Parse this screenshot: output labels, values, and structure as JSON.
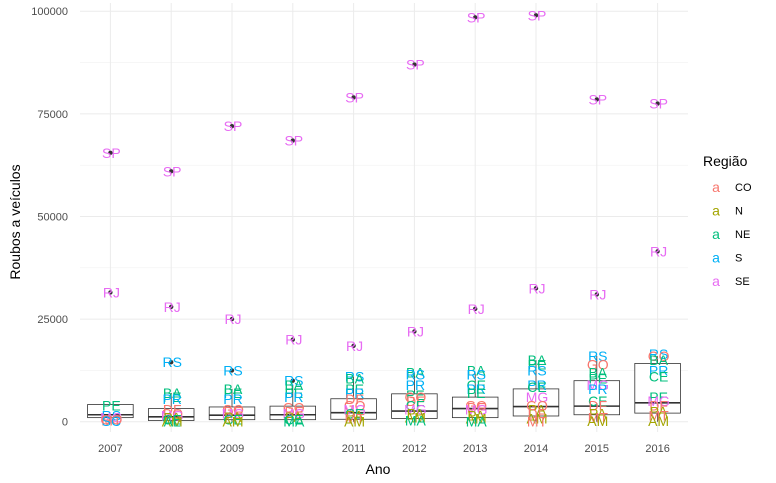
{
  "chart_data": {
    "type": "boxplot",
    "xlabel": "Ano",
    "ylabel": "Roubos a veículos",
    "categories": [
      "2007",
      "2008",
      "2009",
      "2010",
      "2011",
      "2012",
      "2013",
      "2014",
      "2015",
      "2016"
    ],
    "yticks": [
      0,
      25000,
      50000,
      75000,
      100000
    ],
    "ytick_labels": [
      "0",
      "25000",
      "50000",
      "75000",
      "100000"
    ],
    "ylim": [
      -2500,
      102000
    ],
    "legend": {
      "title": "Região",
      "position": "right",
      "glyph": "a",
      "entries": [
        {
          "label": "CO",
          "color": "#F8766D"
        },
        {
          "label": "N",
          "color": "#A3A500"
        },
        {
          "label": "NE",
          "color": "#00BF7D"
        },
        {
          "label": "S",
          "color": "#00B0F6"
        },
        {
          "label": "SE",
          "color": "#E76BF3"
        }
      ]
    },
    "boxes": [
      {
        "x": "2007",
        "q1": 1000,
        "median": 1700,
        "q3": 4200,
        "whisker_low": 0,
        "whisker_high": 4200
      },
      {
        "x": "2008",
        "q1": 300,
        "median": 1200,
        "q3": 3200,
        "whisker_low": 0,
        "whisker_high": 7000
      },
      {
        "x": "2009",
        "q1": 500,
        "median": 1600,
        "q3": 3600,
        "whisker_low": 0,
        "whisker_high": 8000
      },
      {
        "x": "2010",
        "q1": 500,
        "median": 1700,
        "q3": 3800,
        "whisker_low": 0,
        "whisker_high": 9000
      },
      {
        "x": "2011",
        "q1": 600,
        "median": 2200,
        "q3": 5600,
        "whisker_low": 0,
        "whisker_high": 11000
      },
      {
        "x": "2012",
        "q1": 800,
        "median": 2600,
        "q3": 6800,
        "whisker_low": 0,
        "whisker_high": 12000
      },
      {
        "x": "2013",
        "q1": 1000,
        "median": 3200,
        "q3": 6000,
        "whisker_low": 0,
        "whisker_high": 12000
      },
      {
        "x": "2014",
        "q1": 1400,
        "median": 3700,
        "q3": 8000,
        "whisker_low": 0,
        "whisker_high": 15000
      },
      {
        "x": "2015",
        "q1": 1700,
        "median": 3800,
        "q3": 10000,
        "whisker_low": 0,
        "whisker_high": 16000
      },
      {
        "x": "2016",
        "q1": 2100,
        "median": 4600,
        "q3": 14200,
        "whisker_low": 0,
        "whisker_high": 16000
      }
    ],
    "outliers": [
      {
        "x": "2007",
        "value": 65500,
        "label": "SP",
        "region": "SE"
      },
      {
        "x": "2007",
        "value": 31500,
        "label": "RJ",
        "region": "SE"
      },
      {
        "x": "2008",
        "value": 61000,
        "label": "SP",
        "region": "SE"
      },
      {
        "x": "2008",
        "value": 28000,
        "label": "RJ",
        "region": "SE"
      },
      {
        "x": "2008",
        "value": 14500,
        "label": "RS",
        "region": "S"
      },
      {
        "x": "2009",
        "value": 72000,
        "label": "SP",
        "region": "SE"
      },
      {
        "x": "2009",
        "value": 25000,
        "label": "RJ",
        "region": "SE"
      },
      {
        "x": "2009",
        "value": 12500,
        "label": "RS",
        "region": "S"
      },
      {
        "x": "2010",
        "value": 68500,
        "label": "SP",
        "region": "SE"
      },
      {
        "x": "2010",
        "value": 20000,
        "label": "RJ",
        "region": "SE"
      },
      {
        "x": "2010",
        "value": 10000,
        "label": "RS",
        "region": "S"
      },
      {
        "x": "2011",
        "value": 79000,
        "label": "SP",
        "region": "SE"
      },
      {
        "x": "2011",
        "value": 18500,
        "label": "RJ",
        "region": "SE"
      },
      {
        "x": "2012",
        "value": 87000,
        "label": "SP",
        "region": "SE"
      },
      {
        "x": "2012",
        "value": 22000,
        "label": "RJ",
        "region": "SE"
      },
      {
        "x": "2013",
        "value": 98500,
        "label": "SP",
        "region": "SE"
      },
      {
        "x": "2013",
        "value": 27500,
        "label": "RJ",
        "region": "SE"
      },
      {
        "x": "2014",
        "value": 99000,
        "label": "SP",
        "region": "SE"
      },
      {
        "x": "2014",
        "value": 32500,
        "label": "RJ",
        "region": "SE"
      },
      {
        "x": "2015",
        "value": 78500,
        "label": "SP",
        "region": "SE"
      },
      {
        "x": "2015",
        "value": 31000,
        "label": "RJ",
        "region": "SE"
      },
      {
        "x": "2016",
        "value": 77500,
        "label": "SP",
        "region": "SE"
      },
      {
        "x": "2016",
        "value": 41500,
        "label": "RJ",
        "region": "SE"
      }
    ],
    "labels": [
      {
        "x": "2007",
        "value": 31500,
        "label": "RJ",
        "region": "SE"
      },
      {
        "x": "2007",
        "value": 65500,
        "label": "SP",
        "region": "SE"
      },
      {
        "x": "2007",
        "value": 4000,
        "label": "PE",
        "region": "NE"
      },
      {
        "x": "2007",
        "value": 1500,
        "label": "RS",
        "region": "S"
      },
      {
        "x": "2007",
        "value": 1000,
        "label": "MG",
        "region": "SE"
      },
      {
        "x": "2007",
        "value": 500,
        "label": "GO",
        "region": "CO"
      },
      {
        "x": "2007",
        "value": 300,
        "label": "MT",
        "region": "CO"
      },
      {
        "x": "2007",
        "value": 200,
        "label": "SC",
        "region": "S"
      },
      {
        "x": "2008",
        "value": 61000,
        "label": "SP",
        "region": "SE"
      },
      {
        "x": "2008",
        "value": 28000,
        "label": "RJ",
        "region": "SE"
      },
      {
        "x": "2008",
        "value": 14500,
        "label": "RS",
        "region": "S"
      },
      {
        "x": "2008",
        "value": 7000,
        "label": "BA",
        "region": "NE"
      },
      {
        "x": "2008",
        "value": 6000,
        "label": "PE",
        "region": "NE"
      },
      {
        "x": "2008",
        "value": 5500,
        "label": "PR",
        "region": "S"
      },
      {
        "x": "2008",
        "value": 3000,
        "label": "DF",
        "region": "CO"
      },
      {
        "x": "2008",
        "value": 2000,
        "label": "GO",
        "region": "CO"
      },
      {
        "x": "2008",
        "value": 1500,
        "label": "MG",
        "region": "SE"
      },
      {
        "x": "2008",
        "value": 1000,
        "label": "PA",
        "region": "N"
      },
      {
        "x": "2008",
        "value": 500,
        "label": "CE",
        "region": "NE"
      },
      {
        "x": "2008",
        "value": 0,
        "label": "AM",
        "region": "N"
      },
      {
        "x": "2008",
        "value": 0,
        "label": "AL",
        "region": "NE"
      },
      {
        "x": "2009",
        "value": 72000,
        "label": "SP",
        "region": "SE"
      },
      {
        "x": "2009",
        "value": 25000,
        "label": "RJ",
        "region": "SE"
      },
      {
        "x": "2009",
        "value": 12500,
        "label": "RS",
        "region": "S"
      },
      {
        "x": "2009",
        "value": 8000,
        "label": "BA",
        "region": "NE"
      },
      {
        "x": "2009",
        "value": 7000,
        "label": "PE",
        "region": "NE"
      },
      {
        "x": "2009",
        "value": 5500,
        "label": "PR",
        "region": "S"
      },
      {
        "x": "2009",
        "value": 3000,
        "label": "GO",
        "region": "CO"
      },
      {
        "x": "2009",
        "value": 2500,
        "label": "DF",
        "region": "CO"
      },
      {
        "x": "2009",
        "value": 2000,
        "label": "MG",
        "region": "SE"
      },
      {
        "x": "2009",
        "value": 1200,
        "label": "PA",
        "region": "N"
      },
      {
        "x": "2009",
        "value": 600,
        "label": "CE",
        "region": "NE"
      },
      {
        "x": "2009",
        "value": 100,
        "label": "AM",
        "region": "N"
      },
      {
        "x": "2010",
        "value": 68500,
        "label": "SP",
        "region": "SE"
      },
      {
        "x": "2010",
        "value": 20000,
        "label": "RJ",
        "region": "SE"
      },
      {
        "x": "2010",
        "value": 10000,
        "label": "RS",
        "region": "S"
      },
      {
        "x": "2010",
        "value": 9000,
        "label": "BA",
        "region": "NE"
      },
      {
        "x": "2010",
        "value": 7000,
        "label": "PE",
        "region": "NE"
      },
      {
        "x": "2010",
        "value": 6000,
        "label": "PR",
        "region": "S"
      },
      {
        "x": "2010",
        "value": 3500,
        "label": "GO",
        "region": "CO"
      },
      {
        "x": "2010",
        "value": 2500,
        "label": "DF",
        "region": "CO"
      },
      {
        "x": "2010",
        "value": 2000,
        "label": "MG",
        "region": "SE"
      },
      {
        "x": "2010",
        "value": 1200,
        "label": "PA",
        "region": "N"
      },
      {
        "x": "2010",
        "value": 600,
        "label": "CE",
        "region": "NE"
      },
      {
        "x": "2010",
        "value": 0,
        "label": "MA",
        "region": "NE"
      },
      {
        "x": "2011",
        "value": 79000,
        "label": "SP",
        "region": "SE"
      },
      {
        "x": "2011",
        "value": 18500,
        "label": "RJ",
        "region": "SE"
      },
      {
        "x": "2011",
        "value": 11000,
        "label": "RS",
        "region": "S"
      },
      {
        "x": "2011",
        "value": 10500,
        "label": "BA",
        "region": "NE"
      },
      {
        "x": "2011",
        "value": 8000,
        "label": "PE",
        "region": "NE"
      },
      {
        "x": "2011",
        "value": 7000,
        "label": "PR",
        "region": "S"
      },
      {
        "x": "2011",
        "value": 5500,
        "label": "DF",
        "region": "CO"
      },
      {
        "x": "2011",
        "value": 4000,
        "label": "GO",
        "region": "CO"
      },
      {
        "x": "2011",
        "value": 3000,
        "label": "MG",
        "region": "SE"
      },
      {
        "x": "2011",
        "value": 2000,
        "label": "CE",
        "region": "NE"
      },
      {
        "x": "2011",
        "value": 1500,
        "label": "PA",
        "region": "N"
      },
      {
        "x": "2011",
        "value": 800,
        "label": "MT",
        "region": "CO"
      },
      {
        "x": "2011",
        "value": 0,
        "label": "AM",
        "region": "N"
      },
      {
        "x": "2012",
        "value": 87000,
        "label": "SP",
        "region": "SE"
      },
      {
        "x": "2012",
        "value": 22000,
        "label": "RJ",
        "region": "SE"
      },
      {
        "x": "2012",
        "value": 12000,
        "label": "BA",
        "region": "NE"
      },
      {
        "x": "2012",
        "value": 11500,
        "label": "RS",
        "region": "S"
      },
      {
        "x": "2012",
        "value": 9000,
        "label": "PR",
        "region": "S"
      },
      {
        "x": "2012",
        "value": 6500,
        "label": "PE",
        "region": "NE"
      },
      {
        "x": "2012",
        "value": 6000,
        "label": "GO",
        "region": "CO"
      },
      {
        "x": "2012",
        "value": 5000,
        "label": "DF",
        "region": "CO"
      },
      {
        "x": "2012",
        "value": 4000,
        "label": "CE",
        "region": "NE"
      },
      {
        "x": "2012",
        "value": 3000,
        "label": "MG",
        "region": "SE"
      },
      {
        "x": "2012",
        "value": 2000,
        "label": "PA",
        "region": "N"
      },
      {
        "x": "2012",
        "value": 1000,
        "label": "AM",
        "region": "N"
      },
      {
        "x": "2012",
        "value": 300,
        "label": "MA",
        "region": "NE"
      },
      {
        "x": "2013",
        "value": 98500,
        "label": "SP",
        "region": "SE"
      },
      {
        "x": "2013",
        "value": 27500,
        "label": "RJ",
        "region": "SE"
      },
      {
        "x": "2013",
        "value": 12500,
        "label": "BA",
        "region": "NE"
      },
      {
        "x": "2013",
        "value": 11500,
        "label": "RS",
        "region": "S"
      },
      {
        "x": "2013",
        "value": 9000,
        "label": "CE",
        "region": "NE"
      },
      {
        "x": "2013",
        "value": 8000,
        "label": "PR",
        "region": "S"
      },
      {
        "x": "2013",
        "value": 7000,
        "label": "PE",
        "region": "NE"
      },
      {
        "x": "2013",
        "value": 4000,
        "label": "GO",
        "region": "CO"
      },
      {
        "x": "2013",
        "value": 3500,
        "label": "DF",
        "region": "CO"
      },
      {
        "x": "2013",
        "value": 3000,
        "label": "MG",
        "region": "SE"
      },
      {
        "x": "2013",
        "value": 1500,
        "label": "PA",
        "region": "N"
      },
      {
        "x": "2013",
        "value": 800,
        "label": "AM",
        "region": "N"
      },
      {
        "x": "2013",
        "value": 0,
        "label": "MA",
        "region": "NE"
      },
      {
        "x": "2014",
        "value": 99000,
        "label": "SP",
        "region": "SE"
      },
      {
        "x": "2014",
        "value": 32500,
        "label": "RJ",
        "region": "SE"
      },
      {
        "x": "2014",
        "value": 15000,
        "label": "BA",
        "region": "NE"
      },
      {
        "x": "2014",
        "value": 14000,
        "label": "PE",
        "region": "NE"
      },
      {
        "x": "2014",
        "value": 12500,
        "label": "RS",
        "region": "S"
      },
      {
        "x": "2014",
        "value": 9000,
        "label": "PR",
        "region": "S"
      },
      {
        "x": "2014",
        "value": 8500,
        "label": "CE",
        "region": "NE"
      },
      {
        "x": "2014",
        "value": 6000,
        "label": "MG",
        "region": "SE"
      },
      {
        "x": "2014",
        "value": 4000,
        "label": "GO",
        "region": "CO"
      },
      {
        "x": "2014",
        "value": 3000,
        "label": "PA",
        "region": "N"
      },
      {
        "x": "2014",
        "value": 2000,
        "label": "DF",
        "region": "CO"
      },
      {
        "x": "2014",
        "value": 800,
        "label": "AM",
        "region": "N"
      },
      {
        "x": "2014",
        "value": 0,
        "label": "MT",
        "region": "CO"
      },
      {
        "x": "2015",
        "value": 78500,
        "label": "SP",
        "region": "SE"
      },
      {
        "x": "2015",
        "value": 31000,
        "label": "RJ",
        "region": "SE"
      },
      {
        "x": "2015",
        "value": 16000,
        "label": "RS",
        "region": "S"
      },
      {
        "x": "2015",
        "value": 14000,
        "label": "GO",
        "region": "CO"
      },
      {
        "x": "2015",
        "value": 12000,
        "label": "BA",
        "region": "NE"
      },
      {
        "x": "2015",
        "value": 10500,
        "label": "PE",
        "region": "NE"
      },
      {
        "x": "2015",
        "value": 9000,
        "label": "MG",
        "region": "SE"
      },
      {
        "x": "2015",
        "value": 8000,
        "label": "PR",
        "region": "S"
      },
      {
        "x": "2015",
        "value": 5000,
        "label": "CE",
        "region": "NE"
      },
      {
        "x": "2015",
        "value": 4000,
        "label": "DF",
        "region": "CO"
      },
      {
        "x": "2015",
        "value": 2000,
        "label": "PA",
        "region": "N"
      },
      {
        "x": "2015",
        "value": 1000,
        "label": "MT",
        "region": "CO"
      },
      {
        "x": "2015",
        "value": 200,
        "label": "AM",
        "region": "N"
      },
      {
        "x": "2016",
        "value": 77500,
        "label": "SP",
        "region": "SE"
      },
      {
        "x": "2016",
        "value": 41500,
        "label": "RJ",
        "region": "SE"
      },
      {
        "x": "2016",
        "value": 16500,
        "label": "RS",
        "region": "S"
      },
      {
        "x": "2016",
        "value": 16000,
        "label": "GO",
        "region": "CO"
      },
      {
        "x": "2016",
        "value": 15000,
        "label": "BA",
        "region": "NE"
      },
      {
        "x": "2016",
        "value": 12500,
        "label": "PR",
        "region": "S"
      },
      {
        "x": "2016",
        "value": 11000,
        "label": "CE",
        "region": "NE"
      },
      {
        "x": "2016",
        "value": 6000,
        "label": "PE",
        "region": "NE"
      },
      {
        "x": "2016",
        "value": 5000,
        "label": "MG",
        "region": "SE"
      },
      {
        "x": "2016",
        "value": 4000,
        "label": "DF",
        "region": "CO"
      },
      {
        "x": "2016",
        "value": 2500,
        "label": "PA",
        "region": "N"
      },
      {
        "x": "2016",
        "value": 1500,
        "label": "MT",
        "region": "CO"
      },
      {
        "x": "2016",
        "value": 200,
        "label": "AM",
        "region": "N"
      }
    ],
    "grid": true
  }
}
